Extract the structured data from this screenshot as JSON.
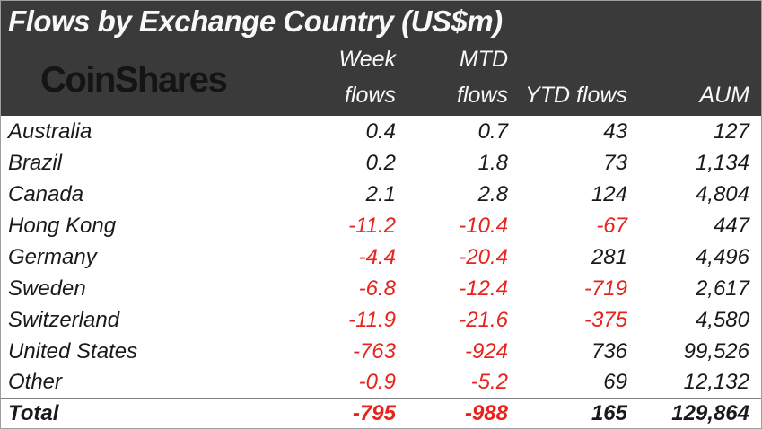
{
  "title": "Flows by Exchange Country (US$m)",
  "logo_text": "CoinShares",
  "columns": {
    "week_line1": "Week",
    "week_line2": "flows",
    "mtd_line1": "MTD",
    "mtd_line2": "flows",
    "ytd": "YTD flows",
    "aum": "AUM"
  },
  "rows": [
    {
      "country": "Australia",
      "week": "0.4",
      "mtd": "0.7",
      "ytd": "43",
      "aum": "127"
    },
    {
      "country": "Brazil",
      "week": "0.2",
      "mtd": "1.8",
      "ytd": "73",
      "aum": "1,134"
    },
    {
      "country": "Canada",
      "week": "2.1",
      "mtd": "2.8",
      "ytd": "124",
      "aum": "4,804"
    },
    {
      "country": "Hong Kong",
      "week": "-11.2",
      "mtd": "-10.4",
      "ytd": "-67",
      "aum": "447"
    },
    {
      "country": "Germany",
      "week": "-4.4",
      "mtd": "-20.4",
      "ytd": "281",
      "aum": "4,496"
    },
    {
      "country": "Sweden",
      "week": "-6.8",
      "mtd": "-12.4",
      "ytd": "-719",
      "aum": "2,617"
    },
    {
      "country": "Switzerland",
      "week": "-11.9",
      "mtd": "-21.6",
      "ytd": "-375",
      "aum": "4,580"
    },
    {
      "country": "United States",
      "week": "-763",
      "mtd": "-924",
      "ytd": "736",
      "aum": "99,526"
    },
    {
      "country": "Other",
      "week": "-0.9",
      "mtd": "-5.2",
      "ytd": "69",
      "aum": "12,132"
    }
  ],
  "total": {
    "country": "Total",
    "week": "-795",
    "mtd": "-988",
    "ytd": "165",
    "aum": "129,864"
  },
  "colors": {
    "header_bg": "#3a3a3a",
    "title_text": "#f8f8f8",
    "logo_color": "#141414",
    "positive": "#1a1a1a",
    "negative": "#e8231d"
  },
  "chart_data": {
    "type": "table",
    "title": "Flows by Exchange Country (US$m)",
    "columns": [
      "Country",
      "Week flows",
      "MTD flows",
      "YTD flows",
      "AUM"
    ],
    "rows": [
      [
        "Australia",
        0.4,
        0.7,
        43,
        127
      ],
      [
        "Brazil",
        0.2,
        1.8,
        73,
        1134
      ],
      [
        "Canada",
        2.1,
        2.8,
        124,
        4804
      ],
      [
        "Hong Kong",
        -11.2,
        -10.4,
        -67,
        447
      ],
      [
        "Germany",
        -4.4,
        -20.4,
        281,
        4496
      ],
      [
        "Sweden",
        -6.8,
        -12.4,
        -719,
        2617
      ],
      [
        "Switzerland",
        -11.9,
        -21.6,
        -375,
        4580
      ],
      [
        "United States",
        -763,
        -924,
        736,
        99526
      ],
      [
        "Other",
        -0.9,
        -5.2,
        69,
        12132
      ],
      [
        "Total",
        -795,
        -988,
        165,
        129864
      ]
    ]
  }
}
